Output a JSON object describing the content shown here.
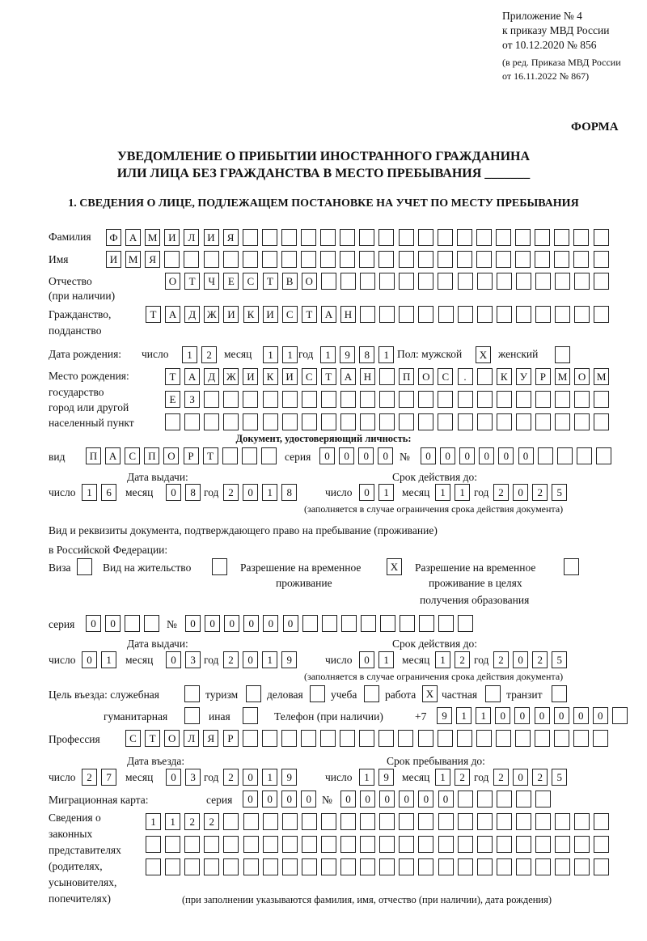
{
  "header": {
    "appendix": [
      "Приложение № 4",
      "к приказу МВД России",
      "от 10.12.2020 № 856"
    ],
    "amendment": [
      "(в ред. Приказа МВД России",
      "от 16.11.2022 № 867)"
    ],
    "form_label": "ФОРМА",
    "title_line1": "УВЕДОМЛЕНИЕ О ПРИБЫТИИ ИНОСТРАННОГО ГРАЖДАНИНА",
    "title_line2": "ИЛИ ЛИЦА БЕЗ ГРАЖДАНСТВА В МЕСТО ПРЕБЫВАНИЯ _______",
    "section1": "1. СВЕДЕНИЯ О ЛИЦЕ, ПОДЛЕЖАЩЕМ ПОСТАНОВКЕ НА УЧЕТ ПО МЕСТУ ПРЕБЫВАНИЯ"
  },
  "labels": {
    "surname": "Фамилия",
    "name": "Имя",
    "patronymic": "Отчество",
    "patronymic2": "(при наличии)",
    "citizenship": "Гражданство,",
    "citizenship2": "подданство",
    "dob": "Дата рождения:",
    "day": "число",
    "month": "месяц",
    "year": "год",
    "sex": "Пол: мужской",
    "female": "женский",
    "pob": [
      "Место рождения:",
      "государство",
      "город или другой",
      "населенный пункт"
    ],
    "id_doc": "Документ, удостоверяющий личность:",
    "kind": "вид",
    "series": "серия",
    "number": "№",
    "issue_date": "Дата выдачи:",
    "valid_until": "Срок действия до:",
    "validity_note": "(заполняется в случае ограничения срока действия документа)",
    "right_doc1": "Вид и реквизиты документа, подтверждающего право на пребывание (проживание)",
    "right_doc2": "в Российской Федерации:",
    "visa": "Виза",
    "residence": "Вид на жительство",
    "temp_res": [
      "Разрешение на временное",
      "проживание"
    ],
    "temp_res_edu": [
      "Разрешение на временное",
      "проживание в целях",
      "получения образования"
    ],
    "purpose": "Цель въезда: служебная",
    "tourism": "туризм",
    "business": "деловая",
    "study": "учеба",
    "work": "работа",
    "private": "частная",
    "transit": "транзит",
    "humanitarian": "гуманитарная",
    "other": "иная",
    "phone": "Телефон (при наличии)",
    "phone_prefix": "+7",
    "profession": "Профессия",
    "entry_date": "Дата въезда:",
    "stay_until": "Срок пребывания до:",
    "migration_card": "Миграционная карта:",
    "legal_reps": [
      "Сведения о",
      "законных",
      "представителях",
      "(родителях,",
      "усыновителях,",
      "попечителях)"
    ],
    "legal_reps_note": "(при заполнении указываются фамилия, имя, отчество (при наличии), дата рождения)"
  },
  "values": {
    "surname": "ФАМИЛИЯ",
    "name": "ИМЯ",
    "patronymic": "ОТЧЕСТВО",
    "citizenship": "ТАДЖИКИСТАН",
    "dob_day": "12",
    "dob_month": "11",
    "dob_year": "1981",
    "male": "X",
    "female": "",
    "pob1": "ТАДЖИКИСТАН ПОС. КУРМОМБ",
    "pob2": "ЕЗ",
    "pob3": "",
    "id_kind": "ПАСПОРТ",
    "id_series": "0000",
    "id_number": "000000",
    "id_issue_day": "16",
    "id_issue_month": "08",
    "id_issue_year": "2018",
    "id_valid_day": "01",
    "id_valid_month": "11",
    "id_valid_year": "2025",
    "visa": "",
    "residence": "",
    "temp_res": "X",
    "temp_res_edu": "",
    "rd_series": "00",
    "rd_number": "000000",
    "rd_issue_day": "01",
    "rd_issue_month": "03",
    "rd_issue_year": "2019",
    "rd_valid_day": "01",
    "rd_valid_month": "12",
    "rd_valid_year": "2025",
    "purpose_work": "X",
    "phone": "911000000",
    "profession": "СТОЛЯР",
    "entry_day": "27",
    "entry_month": "03",
    "entry_year": "2019",
    "stay_day": "19",
    "stay_month": "12",
    "stay_year": "2025",
    "mc_series": "0000",
    "mc_number": "000000",
    "reps1": "1122",
    "reps2": "",
    "reps3": ""
  }
}
